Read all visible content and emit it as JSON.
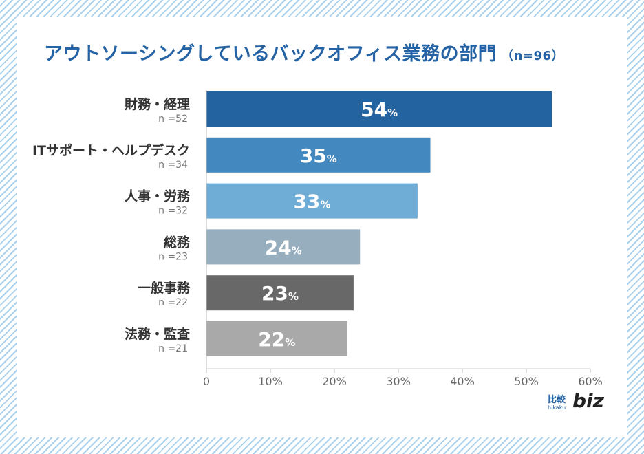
{
  "title": "アウトソーシングしているバックオフィス業務の部門",
  "sample_size": "（n=96）",
  "chart_data": {
    "type": "bar",
    "orientation": "horizontal",
    "categories": [
      "財務・経理",
      "ITサポート・ヘルプデスク",
      "人事・労務",
      "総務",
      "一般事務",
      "法務・監査"
    ],
    "n_labels": [
      "n =52",
      "n =34",
      "n =32",
      "n =23",
      "n =22",
      "n =21"
    ],
    "values": [
      54,
      35,
      33,
      24,
      23,
      22
    ],
    "value_unit": "%",
    "bar_colors": [
      "#2363a0",
      "#4388bf",
      "#6fadd6",
      "#97aebe",
      "#686868",
      "#a9a9a9"
    ],
    "xlim": [
      0,
      60
    ],
    "xticks": [
      0,
      10,
      20,
      30,
      40,
      50,
      60
    ],
    "tick_suffix": "%",
    "grid": false
  },
  "logo": {
    "kanji": "比較",
    "roman": "hikaku",
    "biz": "biz"
  }
}
